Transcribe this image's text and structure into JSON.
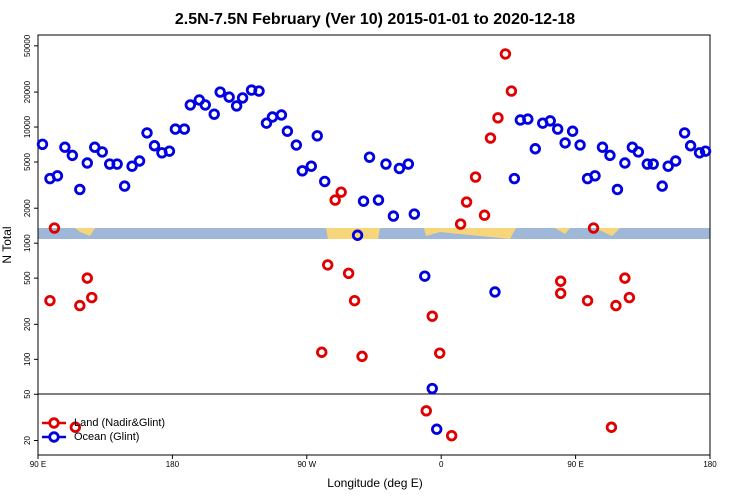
{
  "chart_data": {
    "type": "scatter",
    "title": "2.5N-7.5N February (Ver 10)   2015-01-01 to 2020-12-18",
    "x_label": "Longitude (deg E)",
    "y_label": "N Total",
    "log_y": true,
    "xlim": [
      90,
      540
    ],
    "ylim": [
      15,
      62000
    ],
    "xticks": [
      {
        "value": 90,
        "label": "90 E"
      },
      180,
      {
        "value": 270,
        "label": "90 W"
      },
      {
        "value": 360,
        "label": "0"
      },
      {
        "value": 450,
        "label": "90 E"
      },
      {
        "value": 540,
        "label": "180"
      }
    ],
    "yticks": [
      20,
      50,
      100,
      200,
      500,
      1000,
      2000,
      5000,
      10000,
      20000,
      50000
    ],
    "legend": "bottom-left",
    "series": [
      {
        "name": "Land (Nadir&Glint)",
        "color": "#e00000",
        "x": [
          98,
          101,
          115,
          118,
          123,
          126,
          280,
          284,
          289,
          293,
          298,
          302,
          307,
          350,
          354,
          359,
          367,
          373,
          377,
          383,
          389,
          393,
          398,
          403,
          407,
          440,
          440,
          458,
          462,
          474,
          477,
          483,
          486
        ],
        "values": [
          320,
          1350,
          26,
          290,
          500,
          340,
          115,
          650,
          2350,
          2750,
          550,
          320,
          106,
          36,
          235,
          113,
          22,
          1460,
          2260,
          3710,
          1740,
          8040,
          12000,
          42600,
          20400,
          470,
          370,
          320,
          1350,
          26,
          290,
          500,
          340
        ]
      },
      {
        "name": "Ocean (Glint)",
        "color": "#0000e0",
        "x": [
          93,
          98,
          103,
          108,
          113,
          118,
          123,
          128,
          133,
          138,
          143,
          148,
          153,
          158,
          163,
          168,
          173,
          178,
          182,
          188,
          192,
          198,
          202,
          208,
          212,
          218,
          223,
          227,
          233,
          238,
          243,
          247,
          253,
          257,
          263,
          267,
          273,
          277,
          282,
          304,
          308,
          312,
          318,
          323,
          328,
          332,
          338,
          342,
          349,
          354,
          357,
          396,
          409,
          413,
          418,
          423,
          428,
          433,
          438,
          443,
          448,
          453,
          458,
          463,
          468,
          473,
          478,
          483,
          488,
          492,
          498,
          502,
          508,
          512,
          517,
          523,
          527,
          533,
          537
        ],
        "values": [
          7100,
          3600,
          3800,
          6700,
          5700,
          2900,
          4900,
          6700,
          6100,
          4800,
          4800,
          3100,
          4600,
          5100,
          8900,
          6900,
          6000,
          6200,
          9600,
          9600,
          15500,
          17100,
          15500,
          12900,
          20000,
          18100,
          15200,
          17800,
          20800,
          20400,
          10800,
          12200,
          12700,
          9200,
          7000,
          4200,
          4600,
          8400,
          3400,
          1170,
          2300,
          5500,
          2350,
          4800,
          1710,
          4400,
          4800,
          1780,
          520,
          56,
          25,
          380,
          3600,
          11500,
          11700,
          6500,
          10800,
          11300,
          9600,
          7300,
          9200,
          7000,
          3600,
          3800,
          6700,
          5700,
          2900,
          4900,
          6700,
          6100,
          4800,
          4800,
          3100,
          4600,
          5100,
          8900,
          6900,
          6000,
          6200
        ]
      }
    ]
  }
}
